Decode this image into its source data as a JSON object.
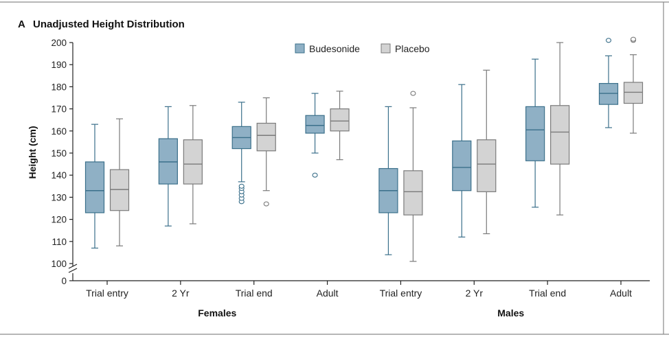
{
  "panel_letter": "A",
  "chart_data": {
    "type": "box",
    "title": "Unadjusted Height Distribution",
    "ylabel": "Height (cm)",
    "xlabel": "",
    "ylim": [
      100,
      200
    ],
    "y_ticks": [
      100,
      110,
      120,
      130,
      140,
      150,
      160,
      170,
      180,
      190,
      200
    ],
    "y_axis_break": true,
    "y_axis_origin_label": "0",
    "grid": false,
    "legend_position": "top-center",
    "colors": {
      "Budesonide": "#8fb0c5",
      "Placebo": "#d3d3d3"
    },
    "stroke_colors": {
      "Budesonide": "#3a6f8a",
      "Placebo": "#7a7a7a"
    },
    "groups": [
      {
        "name": "Females",
        "categories": [
          "Trial entry",
          "2 Yr",
          "Trial end",
          "Adult"
        ]
      },
      {
        "name": "Males",
        "categories": [
          "Trial entry",
          "2 Yr",
          "Trial end",
          "Adult"
        ]
      }
    ],
    "series": [
      {
        "name": "Budesonide",
        "boxes": [
          {
            "min": 107,
            "q1": 123,
            "median": 133,
            "q3": 146,
            "max": 163,
            "outliers": []
          },
          {
            "min": 117,
            "q1": 136,
            "median": 146,
            "q3": 156.5,
            "max": 171,
            "outliers": []
          },
          {
            "min": 137,
            "q1": 152,
            "median": 157,
            "q3": 162,
            "max": 173,
            "outliers": [
              128,
              129.5,
              131,
              132.5,
              134,
              135
            ]
          },
          {
            "min": 150,
            "q1": 159,
            "median": 162.5,
            "q3": 167,
            "max": 177,
            "outliers": [
              140
            ]
          },
          {
            "min": 104,
            "q1": 123,
            "median": 133,
            "q3": 143,
            "max": 171,
            "outliers": []
          },
          {
            "min": 112,
            "q1": 133,
            "median": 143.5,
            "q3": 155.5,
            "max": 181,
            "outliers": []
          },
          {
            "min": 125.5,
            "q1": 146.5,
            "median": 160.5,
            "q3": 171,
            "max": 192.5,
            "outliers": []
          },
          {
            "min": 161.5,
            "q1": 172,
            "median": 177,
            "q3": 181.5,
            "max": 194,
            "outliers": [
              201
            ]
          }
        ]
      },
      {
        "name": "Placebo",
        "boxes": [
          {
            "min": 108,
            "q1": 124,
            "median": 133.5,
            "q3": 142.5,
            "max": 165.5,
            "outliers": []
          },
          {
            "min": 118,
            "q1": 136,
            "median": 145,
            "q3": 156,
            "max": 171.5,
            "outliers": []
          },
          {
            "min": 133,
            "q1": 151,
            "median": 158,
            "q3": 163.5,
            "max": 175,
            "outliers": [
              127
            ]
          },
          {
            "min": 147,
            "q1": 160,
            "median": 164.5,
            "q3": 170,
            "max": 178,
            "outliers": []
          },
          {
            "min": 101,
            "q1": 122,
            "median": 132.5,
            "q3": 142,
            "max": 170.5,
            "outliers": [
              177
            ]
          },
          {
            "min": 113.5,
            "q1": 132.5,
            "median": 145,
            "q3": 156,
            "max": 187.5,
            "outliers": []
          },
          {
            "min": 122,
            "q1": 145,
            "median": 159.5,
            "q3": 171.5,
            "max": 200,
            "outliers": []
          },
          {
            "min": 159,
            "q1": 172.5,
            "median": 177.5,
            "q3": 182,
            "max": 194.5,
            "outliers": [
              201,
              201.5
            ]
          }
        ]
      }
    ]
  }
}
